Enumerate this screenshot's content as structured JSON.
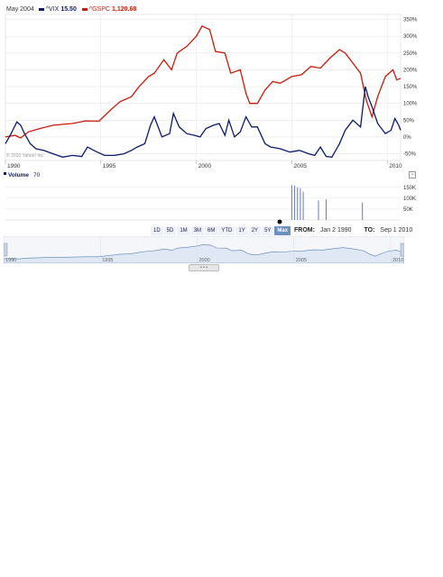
{
  "legend": {
    "date": "May 2004",
    "vix_symbol": "^VIX",
    "vix_value": "15.50",
    "gspc_symbol": "^GSPC",
    "gspc_value": "1,120.68"
  },
  "colors": {
    "vix": "#0b1a6e",
    "gspc": "#cc1a0a",
    "grid": "#e2e2e2",
    "volume": "#6a7ac0",
    "nav_fill": "#dfe8f4",
    "nav_line": "#5a7fb8"
  },
  "copyright": "© 2010 Yahoo! Inc.",
  "x_ticks": [
    "1990",
    "1995",
    "2000",
    "2005",
    "2010"
  ],
  "y_ticks_main": [
    "350%",
    "300%",
    "250%",
    "200%",
    "150%",
    "100%",
    "50%",
    "0%",
    "-50%"
  ],
  "volume_label": "Volume",
  "volume_value": "70",
  "y_ticks_volume": [
    "150K",
    "100K",
    "50K"
  ],
  "collapse_icon": "minus-icon",
  "range_buttons": [
    "1D",
    "5D",
    "1M",
    "3M",
    "6M",
    "YTD",
    "1Y",
    "2Y",
    "5Y",
    "Max"
  ],
  "range_active": "Max",
  "from_label": "FROM:",
  "from_value": "Jan 2 1990",
  "to_label": "TO:",
  "to_value": "Sep 1 2010",
  "nav_ticks": [
    "1990",
    "1995",
    "2000",
    "2005",
    "2010"
  ],
  "chart_data": [
    {
      "type": "line",
      "title": "",
      "xlabel": "",
      "ylabel": "",
      "xlim": [
        1990,
        2010.7
      ],
      "ylim": [
        -70,
        365
      ],
      "grid": true,
      "legend_placement": "top-left",
      "series": [
        {
          "name": "^GSPC",
          "x": [
            1990.0,
            1990.5,
            1990.8,
            1991.2,
            1991.8,
            1992.5,
            1993.5,
            1994.2,
            1994.9,
            1995.5,
            1996.0,
            1996.6,
            1997.0,
            1997.5,
            1997.8,
            1998.3,
            1998.7,
            1999.0,
            1999.5,
            2000.0,
            2000.3,
            2000.7,
            2001.0,
            2001.5,
            2001.8,
            2002.3,
            2002.6,
            2002.8,
            2003.2,
            2003.6,
            2004.0,
            2004.4,
            2005.0,
            2005.5,
            2006.0,
            2006.5,
            2007.0,
            2007.5,
            2007.8,
            2008.2,
            2008.6,
            2008.9,
            2009.2,
            2009.5,
            2009.9,
            2010.3,
            2010.5,
            2010.7
          ],
          "y": [
            0,
            5,
            -3,
            15,
            25,
            35,
            40,
            48,
            47,
            80,
            105,
            120,
            150,
            180,
            190,
            230,
            200,
            250,
            270,
            300,
            330,
            320,
            255,
            250,
            190,
            200,
            130,
            100,
            100,
            140,
            165,
            160,
            180,
            185,
            210,
            205,
            235,
            260,
            250,
            220,
            190,
            110,
            60,
            120,
            180,
            200,
            170,
            175
          ]
        },
        {
          "name": "^VIX",
          "x": [
            1990.0,
            1990.3,
            1990.6,
            1990.8,
            1991.0,
            1991.3,
            1991.6,
            1992.0,
            1992.5,
            1993.0,
            1993.5,
            1994.0,
            1994.3,
            1994.8,
            1995.2,
            1995.7,
            1996.2,
            1996.6,
            1996.9,
            1997.3,
            1997.6,
            1997.8,
            1998.2,
            1998.6,
            1998.8,
            1999.1,
            1999.5,
            1999.9,
            2000.2,
            2000.5,
            2000.9,
            2001.2,
            2001.5,
            2001.7,
            2002.0,
            2002.3,
            2002.6,
            2002.9,
            2003.2,
            2003.6,
            2003.9,
            2004.4,
            2004.9,
            2005.4,
            2005.9,
            2006.2,
            2006.5,
            2006.8,
            2007.1,
            2007.5,
            2007.8,
            2008.2,
            2008.6,
            2008.85,
            2009.0,
            2009.2,
            2009.5,
            2009.9,
            2010.2,
            2010.4,
            2010.6,
            2010.7
          ],
          "y": [
            -20,
            10,
            45,
            35,
            10,
            -20,
            -35,
            -40,
            -50,
            -60,
            -55,
            -58,
            -30,
            -45,
            -55,
            -55,
            -50,
            -40,
            -30,
            -20,
            35,
            60,
            0,
            10,
            70,
            30,
            10,
            5,
            0,
            25,
            35,
            40,
            5,
            50,
            0,
            15,
            60,
            30,
            30,
            -20,
            -30,
            -35,
            -45,
            -40,
            -50,
            -55,
            -30,
            -58,
            -60,
            -20,
            20,
            50,
            30,
            150,
            120,
            90,
            40,
            10,
            20,
            55,
            35,
            20
          ]
        }
      ]
    },
    {
      "type": "bar",
      "title": "",
      "xlabel": "",
      "ylabel": "Volume",
      "ylim": [
        0,
        170000
      ],
      "series": [
        {
          "name": "Volume",
          "x": [
            2005.0,
            2005.15,
            2005.3,
            2005.45,
            2005.6,
            2006.4,
            2006.8,
            2008.7
          ],
          "values": [
            160000,
            158000,
            150000,
            145000,
            130000,
            90000,
            95000,
            80000
          ]
        }
      ]
    }
  ]
}
